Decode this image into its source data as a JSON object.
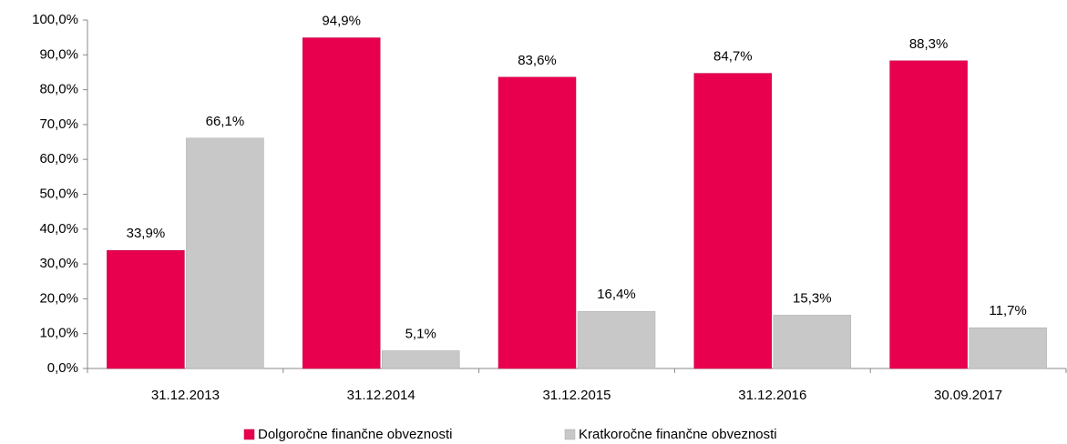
{
  "chart_data": {
    "type": "bar",
    "categories": [
      "31.12.2013",
      "31.12.2014",
      "31.12.2015",
      "31.12.2016",
      "30.09.2017"
    ],
    "series": [
      {
        "name": "Dolgoročne finančne obveznosti",
        "color": "#e8004f",
        "values": [
          33.9,
          94.9,
          83.6,
          84.7,
          88.3
        ],
        "value_labels": [
          "33,9%",
          "94,9%",
          "83,6%",
          "84,7%",
          "88,3%"
        ]
      },
      {
        "name": "Kratkoročne finančne obveznosti",
        "color": "#c8c8c8",
        "values": [
          66.1,
          5.1,
          16.4,
          15.3,
          11.7
        ],
        "value_labels": [
          "66,1%",
          "5,1%",
          "16,4%",
          "15,3%",
          "11,7%"
        ]
      }
    ],
    "ylim": [
      0,
      100
    ],
    "yticks": [
      {
        "value": 0,
        "label": "0,0%"
      },
      {
        "value": 10,
        "label": "10,0%"
      },
      {
        "value": 20,
        "label": "20,0%"
      },
      {
        "value": 30,
        "label": "30,0%"
      },
      {
        "value": 40,
        "label": "40,0%"
      },
      {
        "value": 50,
        "label": "50,0%"
      },
      {
        "value": 60,
        "label": "60,0%"
      },
      {
        "value": 70,
        "label": "70,0%"
      },
      {
        "value": 80,
        "label": "80,0%"
      },
      {
        "value": 90,
        "label": "90,0%"
      },
      {
        "value": 100,
        "label": "100,0%"
      }
    ],
    "legend": "bottom"
  }
}
